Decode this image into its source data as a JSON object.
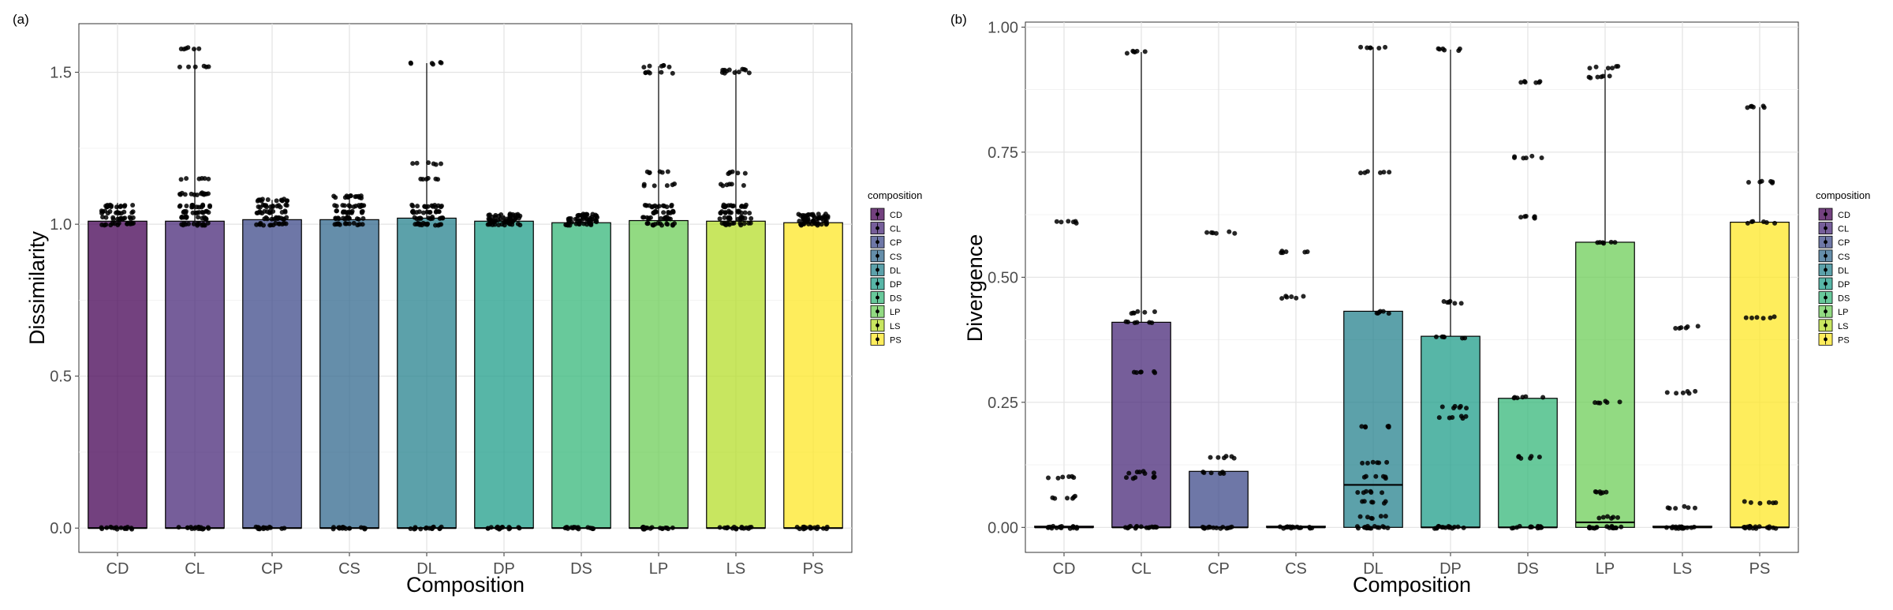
{
  "panels": [
    {
      "tag": "(a)",
      "xlabel": "Composition",
      "ylabel": "Dissimilarity",
      "legend_title": "composition",
      "ylim": [
        -0.08,
        1.66
      ],
      "yticks": [
        0.0,
        0.5,
        1.0,
        1.5
      ],
      "yticklabels": [
        "0.0",
        "0.5",
        "1.0",
        "1.5"
      ]
    },
    {
      "tag": "(b)",
      "xlabel": "Composition",
      "ylabel": "Divergence",
      "legend_title": "composition",
      "ylim": [
        -0.05,
        1.01
      ],
      "yticks": [
        0.0,
        0.25,
        0.5,
        0.75,
        1.0
      ],
      "yticklabels": [
        "0.00",
        "0.25",
        "0.50",
        "0.75",
        "1.00"
      ]
    }
  ],
  "legend_items": [
    "CD",
    "CL",
    "CP",
    "CS",
    "DL",
    "DP",
    "DS",
    "LP",
    "LS",
    "PS"
  ],
  "colors": {
    "CD": "#440154",
    "CL": "#482878",
    "CP": "#3e4989",
    "CS": "#31688e",
    "DL": "#26828e",
    "DP": "#1f9e89",
    "DS": "#35b779",
    "LP": "#6ece58",
    "LS": "#b5de2b",
    "PS": "#fde725"
  },
  "chart_data": [
    {
      "type": "bar",
      "overlay": [
        "errorbar",
        "jittered points"
      ],
      "categories": [
        "CD",
        "CL",
        "CP",
        "CS",
        "DL",
        "DP",
        "DS",
        "LP",
        "LS",
        "PS"
      ],
      "values": [
        1.01,
        1.01,
        1.015,
        1.015,
        1.02,
        1.01,
        1.005,
        1.012,
        1.01,
        1.005
      ],
      "median": [
        0,
        0,
        0,
        0,
        0,
        0,
        0,
        0,
        0,
        0
      ],
      "whisker_top": [
        1.07,
        1.58,
        1.08,
        1.09,
        1.53,
        1.03,
        1.03,
        1.52,
        1.51,
        1.03
      ],
      "point_levels": [
        [
          0,
          1.0,
          1.02,
          1.04,
          1.06
        ],
        [
          0,
          1.0,
          1.02,
          1.04,
          1.06,
          1.1,
          1.15,
          1.52,
          1.58
        ],
        [
          0,
          1.0,
          1.02,
          1.04,
          1.06,
          1.08
        ],
        [
          0,
          1.0,
          1.02,
          1.04,
          1.06,
          1.09
        ],
        [
          0,
          1.0,
          1.02,
          1.04,
          1.06,
          1.15,
          1.2,
          1.53
        ],
        [
          0,
          1.0,
          1.01,
          1.02,
          1.03
        ],
        [
          0,
          1.0,
          1.01,
          1.02,
          1.03
        ],
        [
          0,
          1.0,
          1.02,
          1.04,
          1.06,
          1.13,
          1.17,
          1.5,
          1.52
        ],
        [
          0,
          1.0,
          1.02,
          1.04,
          1.06,
          1.13,
          1.17,
          1.5,
          1.51
        ],
        [
          0,
          1.0,
          1.01,
          1.02,
          1.03
        ]
      ],
      "title": "",
      "xlabel": "Composition",
      "ylabel": "Dissimilarity",
      "ylim": [
        -0.08,
        1.66
      ],
      "grid": true,
      "legend": "right"
    },
    {
      "type": "bar",
      "overlay": [
        "errorbar",
        "jittered points"
      ],
      "categories": [
        "CD",
        "CL",
        "CP",
        "CS",
        "DL",
        "DP",
        "DS",
        "LP",
        "LS",
        "PS"
      ],
      "values": [
        0.0,
        0.41,
        0.112,
        0.0,
        0.432,
        0.382,
        0.258,
        0.57,
        0.0,
        0.61
      ],
      "median": [
        0,
        0,
        0,
        0,
        0.085,
        0,
        0,
        0.01,
        0,
        0
      ],
      "whisker_top": [
        0.0,
        0.95,
        0.112,
        0.0,
        0.96,
        0.955,
        0.258,
        0.915,
        0.0,
        0.84
      ],
      "point_levels": [
        [
          0,
          0.06,
          0.1,
          0.61
        ],
        [
          0,
          0.1,
          0.11,
          0.31,
          0.41,
          0.43,
          0.95
        ],
        [
          0,
          0.11,
          0.14,
          0.59
        ],
        [
          0,
          0.46,
          0.55
        ],
        [
          0,
          0.02,
          0.05,
          0.07,
          0.1,
          0.13,
          0.2,
          0.43,
          0.71,
          0.96
        ],
        [
          0,
          0.22,
          0.24,
          0.38,
          0.45,
          0.955
        ],
        [
          0,
          0.14,
          0.26,
          0.62,
          0.74,
          0.89
        ],
        [
          0,
          0.02,
          0.07,
          0.25,
          0.57,
          0.9,
          0.92
        ],
        [
          0,
          0.04,
          0.27,
          0.4
        ],
        [
          0,
          0.05,
          0.42,
          0.61,
          0.69,
          0.84
        ]
      ],
      "title": "",
      "xlabel": "Composition",
      "ylabel": "Divergence",
      "ylim": [
        -0.05,
        1.01
      ],
      "grid": true,
      "legend": "right"
    }
  ]
}
